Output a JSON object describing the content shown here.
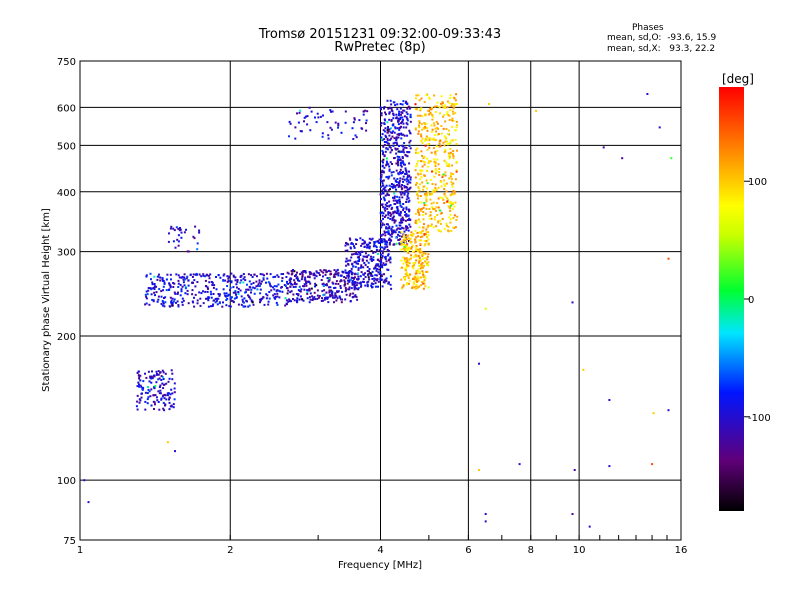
{
  "header": {
    "title_line1": "Tromsø 20151231 09:32:00-09:33:43",
    "title_line2": "RwPretec (8p)",
    "legend_title": "Phases",
    "legend_o": "mean, sd,O:  -93.6, 15.9",
    "legend_x": "mean, sd,X:   93.3, 22.2"
  },
  "chart_data": {
    "type": "scatter",
    "title": "Tromsø 20151231 09:32:00-09:33:43",
    "subtitle": "RwPretec (8p)",
    "xlabel": "Frequency [MHz]",
    "ylabel": "Stationary phase Virtual Height [km]",
    "x_scale": "log",
    "y_scale": "log",
    "xlim": [
      1,
      16
    ],
    "ylim": [
      75,
      750
    ],
    "x_ticks": [
      1,
      2,
      4,
      6,
      8,
      10,
      16
    ],
    "y_ticks": [
      75,
      100,
      200,
      300,
      400,
      500,
      600,
      750
    ],
    "grid": true,
    "colorbar": {
      "label": "[deg]",
      "range": [
        -180,
        180
      ],
      "ticks": [
        -100,
        0,
        100
      ],
      "colormap": "rainbow"
    },
    "series": [
      {
        "regions": [
          {
            "f": [
              1.3,
              1.55
            ],
            "h": [
              140,
              170
            ],
            "phase": -100,
            "n": 140
          },
          {
            "f": [
              1.35,
              2.6
            ],
            "h": [
              230,
              270
            ],
            "phase": -95,
            "n": 420
          },
          {
            "f": [
              1.5,
              1.75
            ],
            "h": [
              300,
              340
            ],
            "phase": -100,
            "n": 30
          },
          {
            "f": [
              2.6,
              3.6
            ],
            "h": [
              235,
              275
            ],
            "phase": -110,
            "n": 300
          },
          {
            "f": [
              3.4,
              4.2
            ],
            "h": [
              250,
              320
            ],
            "phase": -100,
            "n": 300
          },
          {
            "f": [
              4.0,
              4.6
            ],
            "h": [
              310,
              620
            ],
            "phase": -100,
            "n": 600
          },
          {
            "f": [
              4.4,
              5.0
            ],
            "h": [
              250,
              330
            ],
            "phase": 100,
            "n": 250
          },
          {
            "f": [
              4.7,
              5.7
            ],
            "h": [
              330,
              640
            ],
            "phase": 100,
            "n": 450
          },
          {
            "f": [
              2.6,
              3.8
            ],
            "h": [
              515,
              600
            ],
            "phase": -100,
            "n": 60
          }
        ],
        "points": [
          {
            "f": 1.04,
            "h": 90,
            "phase": -100
          },
          {
            "f": 1.02,
            "h": 100,
            "phase": -100
          },
          {
            "f": 1.5,
            "h": 120,
            "phase": 100
          },
          {
            "f": 1.55,
            "h": 115,
            "phase": -100
          },
          {
            "f": 6.3,
            "h": 175,
            "phase": -100
          },
          {
            "f": 6.3,
            "h": 105,
            "phase": 100
          },
          {
            "f": 6.5,
            "h": 228,
            "phase": 60
          },
          {
            "f": 6.5,
            "h": 85,
            "phase": -100
          },
          {
            "f": 6.5,
            "h": 82,
            "phase": -100
          },
          {
            "f": 7.6,
            "h": 108,
            "phase": -100
          },
          {
            "f": 8.2,
            "h": 590,
            "phase": 100
          },
          {
            "f": 9.7,
            "h": 235,
            "phase": -100
          },
          {
            "f": 9.8,
            "h": 105,
            "phase": -120
          },
          {
            "f": 9.7,
            "h": 85,
            "phase": -120
          },
          {
            "f": 10.5,
            "h": 80,
            "phase": -100
          },
          {
            "f": 11.2,
            "h": 495,
            "phase": -120
          },
          {
            "f": 11.5,
            "h": 147,
            "phase": -100
          },
          {
            "f": 11.5,
            "h": 107,
            "phase": -100
          },
          {
            "f": 12.2,
            "h": 470,
            "phase": -120
          },
          {
            "f": 13.7,
            "h": 640,
            "phase": -100
          },
          {
            "f": 14.1,
            "h": 138,
            "phase": 100
          },
          {
            "f": 14.0,
            "h": 108,
            "phase": 150
          },
          {
            "f": 14.5,
            "h": 545,
            "phase": -100
          },
          {
            "f": 15.3,
            "h": 470,
            "phase": 20
          },
          {
            "f": 15.1,
            "h": 290,
            "phase": 150
          },
          {
            "f": 15.1,
            "h": 140,
            "phase": -100
          },
          {
            "f": 10.2,
            "h": 170,
            "phase": 100
          },
          {
            "f": 6.6,
            "h": 610,
            "phase": 100
          }
        ]
      }
    ]
  }
}
